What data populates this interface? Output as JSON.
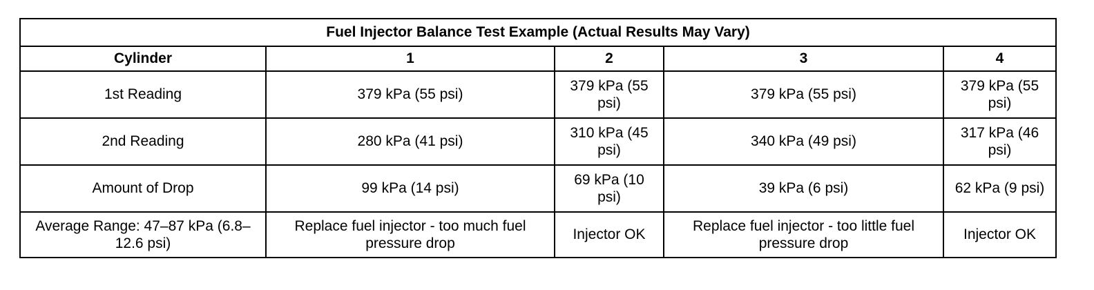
{
  "table": {
    "title": "Fuel Injector Balance Test Example (Actual Results May Vary)",
    "headers": [
      "Cylinder",
      "1",
      "2",
      "3",
      "4"
    ],
    "rows": [
      {
        "label": "1st Reading",
        "cells": [
          "379 kPa (55 psi)",
          "379 kPa (55 psi)",
          "379 kPa (55 psi)",
          "379 kPa (55 psi)"
        ]
      },
      {
        "label": "2nd Reading",
        "cells": [
          "280 kPa (41 psi)",
          "310 kPa (45 psi)",
          "340 kPa (49 psi)",
          "317 kPa (46 psi)"
        ]
      },
      {
        "label": "Amount of Drop",
        "cells": [
          "99 kPa (14 psi)",
          "69 kPa (10 psi)",
          "39 kPa (6 psi)",
          "62 kPa (9 psi)"
        ]
      },
      {
        "label": "Average Range: 47–87 kPa (6.8–12.6 psi)",
        "cells": [
          "Replace fuel injector - too much fuel pressure drop",
          "Injector OK",
          "Replace fuel injector - too little fuel pressure drop",
          "Injector OK"
        ]
      }
    ]
  }
}
